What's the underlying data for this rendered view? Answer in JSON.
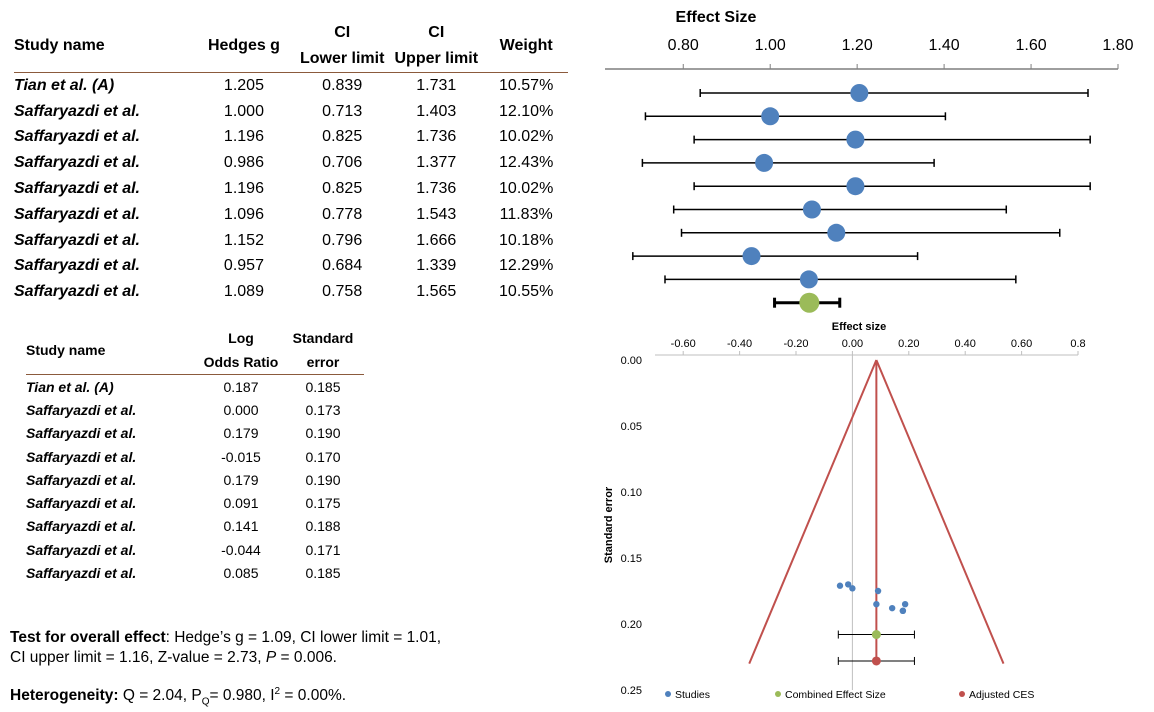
{
  "table1": {
    "headers": [
      "Study name",
      "Hedges g",
      "CI Lower limit",
      "CI Upper limit",
      "Weight"
    ],
    "rows": [
      [
        "Tian et al. (A)",
        "1.205",
        "0.839",
        "1.731",
        "10.57%"
      ],
      [
        "Saffaryazdi et al.",
        "1.000",
        "0.713",
        "1.403",
        "12.10%"
      ],
      [
        "Saffaryazdi et al.",
        "1.196",
        "0.825",
        "1.736",
        "10.02%"
      ],
      [
        "Saffaryazdi et al.",
        "0.986",
        "0.706",
        "1.377",
        "12.43%"
      ],
      [
        "Saffaryazdi et al.",
        "1.196",
        "0.825",
        "1.736",
        "10.02%"
      ],
      [
        "Saffaryazdi et al.",
        "1.096",
        "0.778",
        "1.543",
        "11.83%"
      ],
      [
        "Saffaryazdi et al.",
        "1.152",
        "0.796",
        "1.666",
        "10.18%"
      ],
      [
        "Saffaryazdi et al.",
        "0.957",
        "0.684",
        "1.339",
        "12.29%"
      ],
      [
        "Saffaryazdi et al.",
        "1.089",
        "0.758",
        "1.565",
        "10.55%"
      ]
    ]
  },
  "table2": {
    "headers": [
      "Study name",
      "Log Odds Ratio",
      "Standard error"
    ],
    "rows": [
      [
        "Tian et al. (A)",
        "0.187",
        "0.185"
      ],
      [
        "Saffaryazdi et al.",
        "0.000",
        "0.173"
      ],
      [
        "Saffaryazdi et al.",
        "0.179",
        "0.190"
      ],
      [
        "Saffaryazdi et al.",
        "-0.015",
        "0.170"
      ],
      [
        "Saffaryazdi et al.",
        "0.179",
        "0.190"
      ],
      [
        "Saffaryazdi et al.",
        "0.091",
        "0.175"
      ],
      [
        "Saffaryazdi et al.",
        "0.141",
        "0.188"
      ],
      [
        "Saffaryazdi et al.",
        "-0.044",
        "0.171"
      ],
      [
        "Saffaryazdi et al.",
        "0.085",
        "0.185"
      ]
    ]
  },
  "overall": {
    "label": "Test for overall effect",
    "line1": ": Hedge’s g = 1.09, CI lower limit = 1.01,",
    "line2_a": "CI upper limit  = 1.16, Z-value = 2.73, ",
    "line2_p": "P",
    "line2_b": " = 0.006."
  },
  "heterogeneity": {
    "label": "Heterogeneity:",
    "q": " Q = 2.04, P",
    "q_sub": "Q",
    "pq": "=  0.980, I",
    "i_sup": "2",
    "i_val": " = 0.00%."
  },
  "chart_data": [
    {
      "type": "forest",
      "title": "Effect Size",
      "xlim": [
        0.62,
        1.8
      ],
      "ticks": [
        "0.80",
        "1.00",
        "1.20",
        "1.40",
        "1.60",
        "1.80"
      ],
      "tick_values": [
        0.8,
        1.0,
        1.2,
        1.4,
        1.6,
        1.8
      ],
      "studies": [
        {
          "g": 1.205,
          "lower": 0.839,
          "upper": 1.731
        },
        {
          "g": 1.0,
          "lower": 0.713,
          "upper": 1.403
        },
        {
          "g": 1.196,
          "lower": 0.825,
          "upper": 1.736
        },
        {
          "g": 0.986,
          "lower": 0.706,
          "upper": 1.377
        },
        {
          "g": 1.196,
          "lower": 0.825,
          "upper": 1.736
        },
        {
          "g": 1.096,
          "lower": 0.778,
          "upper": 1.543
        },
        {
          "g": 1.152,
          "lower": 0.796,
          "upper": 1.666
        },
        {
          "g": 0.957,
          "lower": 0.684,
          "upper": 1.339
        },
        {
          "g": 1.089,
          "lower": 0.758,
          "upper": 1.565
        }
      ],
      "combined": {
        "g": 1.09,
        "lower": 1.01,
        "upper": 1.16
      },
      "colors": {
        "study": "#4f81bd",
        "combined": "#9bbb59"
      }
    },
    {
      "type": "funnel",
      "xlabel": "Effect size",
      "ylabel": "Standard error",
      "xlim": [
        -0.7,
        0.8
      ],
      "xticks": [
        "-0.60",
        "-0.40",
        "-0.20",
        "0.00",
        "0.20",
        "0.40",
        "0.60",
        "0.8"
      ],
      "xtick_values": [
        -0.6,
        -0.4,
        -0.2,
        0.0,
        0.2,
        0.4,
        0.6,
        0.8
      ],
      "ylim": [
        0.0,
        0.25
      ],
      "yticks": [
        "0.00",
        "0.05",
        "0.10",
        "0.15",
        "0.20",
        "0.25"
      ],
      "ytick_values": [
        0.0,
        0.05,
        0.1,
        0.15,
        0.2,
        0.25
      ],
      "funnel_center": 0.085,
      "studies": [
        {
          "x": 0.187,
          "y": 0.185
        },
        {
          "x": 0.0,
          "y": 0.173
        },
        {
          "x": 0.179,
          "y": 0.19
        },
        {
          "x": -0.015,
          "y": 0.17
        },
        {
          "x": 0.179,
          "y": 0.19
        },
        {
          "x": 0.091,
          "y": 0.175
        },
        {
          "x": 0.141,
          "y": 0.188
        },
        {
          "x": -0.044,
          "y": 0.171
        },
        {
          "x": 0.085,
          "y": 0.185
        }
      ],
      "combined": {
        "x": 0.085,
        "y": 0.208,
        "lower": -0.05,
        "upper": 0.22
      },
      "adjusted": {
        "x": 0.085,
        "y": 0.228,
        "lower": -0.05,
        "upper": 0.22
      },
      "legend": [
        "Studies",
        "Combined Effect Size",
        "Adjusted CES"
      ],
      "colors": {
        "studies": "#4f81bd",
        "combined": "#9bbb59",
        "adjusted": "#c0504d",
        "funnel": "#c0504d"
      }
    }
  ]
}
